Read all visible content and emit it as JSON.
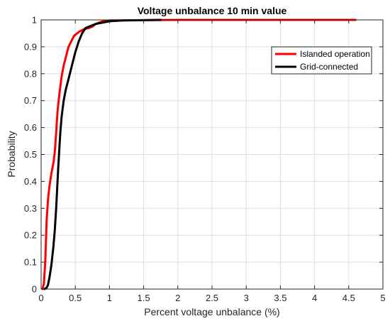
{
  "chart_data": {
    "type": "line",
    "title": "Voltage unbalance 10 min value",
    "xlabel": "Percent voltage unbalance (%)",
    "ylabel": "Probability",
    "xlim": [
      0,
      5
    ],
    "ylim": [
      0,
      1
    ],
    "x_ticks": [
      0,
      0.5,
      1,
      1.5,
      2,
      2.5,
      3,
      3.5,
      4,
      4.5,
      5
    ],
    "x_tick_labels": [
      "0",
      "0.5",
      "1",
      "1.5",
      "2",
      "2.5",
      "3",
      "3.5",
      "4",
      "4.5",
      "5"
    ],
    "y_ticks": [
      0,
      0.1,
      0.2,
      0.3,
      0.4,
      0.5,
      0.6,
      0.7,
      0.8,
      0.9,
      1
    ],
    "y_tick_labels": [
      "0",
      "0.1",
      "0.2",
      "0.3",
      "0.4",
      "0.5",
      "0.6",
      "0.7",
      "0.8",
      "0.9",
      "1"
    ],
    "grid": true,
    "legend_position": "top-right",
    "series": [
      {
        "name": "Islanded operation",
        "color": "#ff0000",
        "points": [
          [
            0.02,
            0
          ],
          [
            0.04,
            0.02
          ],
          [
            0.06,
            0.1
          ],
          [
            0.08,
            0.25
          ],
          [
            0.1,
            0.33
          ],
          [
            0.12,
            0.38
          ],
          [
            0.15,
            0.43
          ],
          [
            0.18,
            0.47
          ],
          [
            0.2,
            0.51
          ],
          [
            0.22,
            0.58
          ],
          [
            0.24,
            0.66
          ],
          [
            0.27,
            0.73
          ],
          [
            0.3,
            0.79
          ],
          [
            0.33,
            0.83
          ],
          [
            0.36,
            0.86
          ],
          [
            0.4,
            0.9
          ],
          [
            0.44,
            0.92
          ],
          [
            0.48,
            0.94
          ],
          [
            0.55,
            0.955
          ],
          [
            0.62,
            0.965
          ],
          [
            0.7,
            0.97
          ],
          [
            0.75,
            0.975
          ],
          [
            0.8,
            0.985
          ],
          [
            0.9,
            0.995
          ],
          [
            1.0,
            0.998
          ],
          [
            1.5,
            0.999
          ],
          [
            2.0,
            1.0
          ],
          [
            4.6,
            1.0
          ]
        ]
      },
      {
        "name": "Grid-connected",
        "color": "#000000",
        "points": [
          [
            0.05,
            0
          ],
          [
            0.08,
            0.005
          ],
          [
            0.1,
            0.015
          ],
          [
            0.12,
            0.04
          ],
          [
            0.15,
            0.09
          ],
          [
            0.18,
            0.16
          ],
          [
            0.2,
            0.22
          ],
          [
            0.22,
            0.3
          ],
          [
            0.25,
            0.45
          ],
          [
            0.28,
            0.58
          ],
          [
            0.3,
            0.64
          ],
          [
            0.33,
            0.7
          ],
          [
            0.36,
            0.74
          ],
          [
            0.4,
            0.78
          ],
          [
            0.45,
            0.83
          ],
          [
            0.5,
            0.88
          ],
          [
            0.55,
            0.92
          ],
          [
            0.6,
            0.95
          ],
          [
            0.65,
            0.97
          ],
          [
            0.7,
            0.975
          ],
          [
            0.8,
            0.985
          ],
          [
            0.9,
            0.99
          ],
          [
            1.0,
            0.995
          ],
          [
            1.2,
            0.998
          ],
          [
            1.5,
            0.999
          ],
          [
            1.75,
            1.0
          ]
        ]
      }
    ]
  }
}
